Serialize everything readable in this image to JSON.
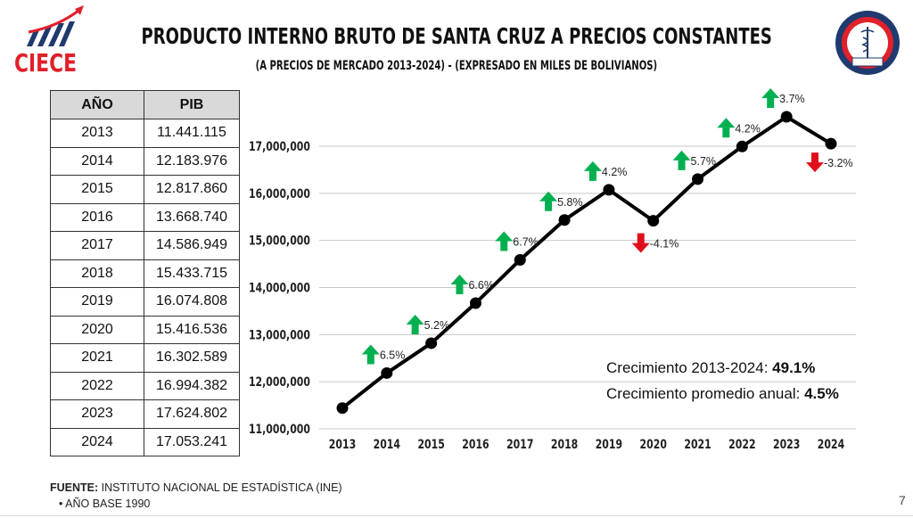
{
  "header": {
    "title": "PRODUCTO INTERNO BRUTO DE SANTA CRUZ A PRECIOS CONSTANTES",
    "subtitle": "(A PRECIOS DE MERCADO 2013-2024)  - (EXPRESADO EN MILES DE BOLIVIANOS)",
    "logo_left_text": "CIECE",
    "logo_right_top_text": "COLEGIO DE ECONOMISTAS",
    "logo_right_bottom_text": "SANTA CRUZ"
  },
  "table": {
    "headers": [
      "AÑO",
      "PIB"
    ],
    "rows": [
      [
        "2013",
        "11.441.115"
      ],
      [
        "2014",
        "12.183.976"
      ],
      [
        "2015",
        "12.817.860"
      ],
      [
        "2016",
        "13.668.740"
      ],
      [
        "2017",
        "14.586.949"
      ],
      [
        "2018",
        "15.433.715"
      ],
      [
        "2019",
        "16.074.808"
      ],
      [
        "2020",
        "15.416.536"
      ],
      [
        "2021",
        "16.302.589"
      ],
      [
        "2022",
        "16.994.382"
      ],
      [
        "2023",
        "17.624.802"
      ],
      [
        "2024",
        "17.053.241"
      ]
    ]
  },
  "chart_data": {
    "type": "line",
    "title": "",
    "xlabel": "",
    "ylabel": "",
    "x": [
      "2013",
      "2014",
      "2015",
      "2016",
      "2017",
      "2018",
      "2019",
      "2020",
      "2021",
      "2022",
      "2023",
      "2024"
    ],
    "series": [
      {
        "name": "PIB",
        "values": [
          11441115,
          12183976,
          12817860,
          13668740,
          14586949,
          15433715,
          16074808,
          15416536,
          16302589,
          16994382,
          17624802,
          17053241
        ]
      }
    ],
    "ylim": [
      11000000,
      17000000
    ],
    "yticks": [
      11000000,
      12000000,
      13000000,
      14000000,
      15000000,
      16000000,
      17000000
    ],
    "ytick_labels": [
      "11,000,000",
      "12,000,000",
      "13,000,000",
      "14,000,000",
      "15,000,000",
      "16,000,000",
      "17,000,000"
    ],
    "grid": true,
    "annotations": [
      {
        "after": "2014",
        "label": "6.5%",
        "direction": "up"
      },
      {
        "after": "2015",
        "label": "5.2%",
        "direction": "up"
      },
      {
        "after": "2016",
        "label": "6.6%",
        "direction": "up"
      },
      {
        "after": "2017",
        "label": "6.7%",
        "direction": "up"
      },
      {
        "after": "2018",
        "label": "5.8%",
        "direction": "up"
      },
      {
        "after": "2019",
        "label": "4.2%",
        "direction": "up"
      },
      {
        "after": "2020",
        "label": "-4.1%",
        "direction": "down"
      },
      {
        "after": "2021",
        "label": "5.7%",
        "direction": "up"
      },
      {
        "after": "2022",
        "label": "4.2%",
        "direction": "up"
      },
      {
        "after": "2023",
        "label": "3.7%",
        "direction": "up"
      },
      {
        "after": "2024",
        "label": "-3.2%",
        "direction": "down"
      }
    ],
    "colors": {
      "line": "#000000",
      "up": "#00b050",
      "down": "#e0101a",
      "grid": "#c8c8c8"
    }
  },
  "summary": {
    "growth_label": "Crecimiento 2013-2024: ",
    "growth_value": "49.1%",
    "avg_label": "Crecimiento promedio anual: ",
    "avg_value": "4.5%"
  },
  "footer": {
    "source_label": "FUENTE:",
    "source_text": " INSTITUTO NACIONAL DE ESTADÍSTICA (INE)",
    "note": "• AÑO BASE 1990",
    "page_number": "7"
  }
}
